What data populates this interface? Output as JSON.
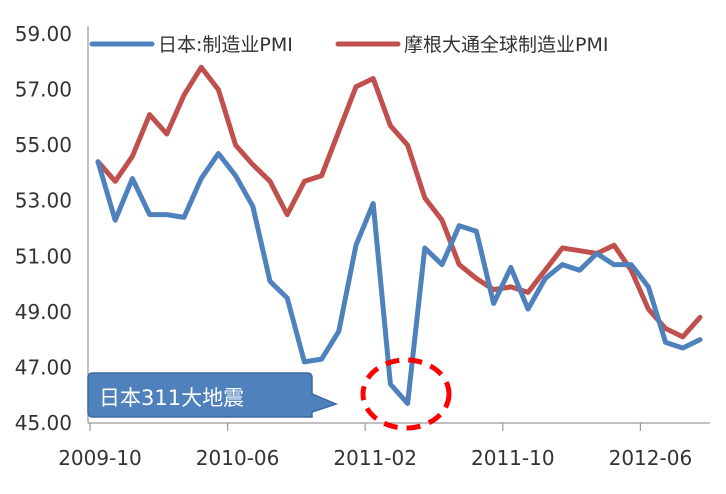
{
  "chart_data": {
    "type": "line",
    "x": [
      "2009-10",
      "2009-11",
      "2009-12",
      "2010-01",
      "2010-02",
      "2010-03",
      "2010-04",
      "2010-05",
      "2010-06",
      "2010-07",
      "2010-08",
      "2010-09",
      "2010-10",
      "2010-11",
      "2010-12",
      "2011-01",
      "2011-02",
      "2011-03",
      "2011-04",
      "2011-05",
      "2011-06",
      "2011-07",
      "2011-08",
      "2011-09",
      "2011-10",
      "2011-11",
      "2011-12",
      "2012-01",
      "2012-02",
      "2012-03",
      "2012-04",
      "2012-05",
      "2012-06",
      "2012-07",
      "2012-08",
      "2012-09"
    ],
    "x_ticks": [
      "2009-10",
      "2010-06",
      "2011-02",
      "2011-10",
      "2012-06"
    ],
    "ylim": [
      45.0,
      59.0
    ],
    "y_ticks": [
      "45.00",
      "47.00",
      "49.00",
      "51.00",
      "53.00",
      "55.00",
      "57.00",
      "59.00"
    ],
    "series": [
      {
        "name": "日本:制造业PMI",
        "color": "#4f81bd",
        "values": [
          54.4,
          52.3,
          53.8,
          52.5,
          52.5,
          52.4,
          53.8,
          54.7,
          53.9,
          52.8,
          50.1,
          49.5,
          47.2,
          47.3,
          48.3,
          51.4,
          52.9,
          46.4,
          45.7,
          51.3,
          50.7,
          52.1,
          51.9,
          49.3,
          50.6,
          49.1,
          50.2,
          50.7,
          50.5,
          51.1,
          50.7,
          50.7,
          49.9,
          47.9,
          47.7,
          48.0
        ]
      },
      {
        "name": "摩根大通全球制造业PMI",
        "color": "#c0504d",
        "values": [
          54.4,
          53.7,
          54.6,
          56.1,
          55.4,
          56.8,
          57.8,
          57.0,
          55.0,
          54.3,
          53.7,
          52.5,
          53.7,
          53.9,
          55.5,
          57.1,
          57.4,
          55.7,
          55.0,
          53.1,
          52.3,
          50.7,
          50.2,
          49.8,
          49.9,
          49.7,
          50.5,
          51.3,
          51.2,
          51.1,
          51.4,
          50.5,
          49.1,
          48.4,
          48.1,
          48.8
        ]
      }
    ]
  },
  "annotation": {
    "callout_text": "日本311大地震",
    "callout_color": "#4f81bd",
    "circle_color": "#ff0000"
  }
}
